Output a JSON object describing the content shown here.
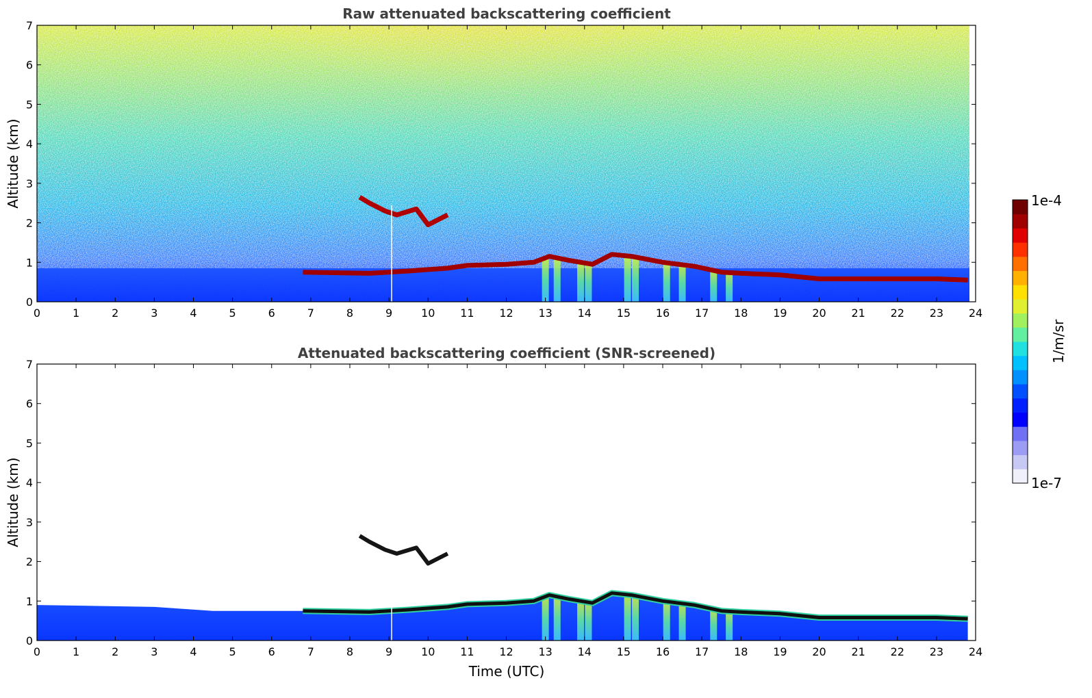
{
  "chart_data": [
    {
      "type": "heatmap",
      "title": "Raw attenuated backscattering coefficient",
      "xlabel": "",
      "ylabel": "Altitude (km)",
      "xlim": [
        0,
        24
      ],
      "ylim": [
        0,
        7
      ],
      "x_ticks": [
        "0",
        "1",
        "2",
        "3",
        "4",
        "5",
        "6",
        "7",
        "8",
        "9",
        "10",
        "11",
        "12",
        "13",
        "14",
        "15",
        "16",
        "17",
        "18",
        "19",
        "20",
        "21",
        "22",
        "23",
        "24"
      ],
      "y_ticks": [
        "0",
        "1",
        "2",
        "3",
        "4",
        "5",
        "6",
        "7"
      ],
      "layers": {
        "boundary_layer": [
          [
            6.8,
            0.75
          ],
          [
            8.5,
            0.72
          ],
          [
            9.5,
            0.78
          ],
          [
            10.5,
            0.85
          ],
          [
            11,
            0.92
          ],
          [
            12,
            0.95
          ],
          [
            12.7,
            1.0
          ],
          [
            13.1,
            1.15
          ],
          [
            13.6,
            1.05
          ],
          [
            14.2,
            0.95
          ],
          [
            14.7,
            1.2
          ],
          [
            15.2,
            1.15
          ],
          [
            16,
            1.0
          ],
          [
            16.8,
            0.9
          ],
          [
            17.5,
            0.75
          ],
          [
            18,
            0.72
          ],
          [
            19,
            0.68
          ],
          [
            20,
            0.58
          ],
          [
            21,
            0.58
          ],
          [
            22,
            0.58
          ],
          [
            23,
            0.58
          ],
          [
            23.8,
            0.55
          ]
        ],
        "elevated_cloud": [
          [
            8.25,
            2.65
          ],
          [
            8.5,
            2.5
          ],
          [
            8.9,
            2.3
          ],
          [
            9.2,
            2.2
          ],
          [
            9.7,
            2.35
          ],
          [
            10.0,
            1.95
          ],
          [
            10.5,
            2.2
          ]
        ],
        "precip_columns": [
          13.0,
          13.3,
          13.9,
          14.1,
          15.1,
          15.3,
          16.1,
          16.5,
          17.3,
          17.7
        ]
      }
    },
    {
      "type": "heatmap",
      "title": "Attenuated backscattering coefficient (SNR-screened)",
      "xlabel": "Time (UTC)",
      "ylabel": "Altitude (km)",
      "xlim": [
        0,
        24
      ],
      "ylim": [
        0,
        7
      ],
      "x_ticks": [
        "0",
        "1",
        "2",
        "3",
        "4",
        "5",
        "6",
        "7",
        "8",
        "9",
        "10",
        "11",
        "12",
        "13",
        "14",
        "15",
        "16",
        "17",
        "18",
        "19",
        "20",
        "21",
        "22",
        "23",
        "24"
      ],
      "y_ticks": [
        "0",
        "1",
        "2",
        "3",
        "4",
        "5",
        "6",
        "7"
      ],
      "layers": {
        "boundary_layer": [
          [
            0,
            0.9
          ],
          [
            3,
            0.85
          ],
          [
            4.5,
            0.75
          ],
          [
            6.8,
            0.75
          ],
          [
            8.5,
            0.72
          ],
          [
            9.5,
            0.78
          ],
          [
            10.5,
            0.85
          ],
          [
            11,
            0.92
          ],
          [
            12,
            0.95
          ],
          [
            12.7,
            1.0
          ],
          [
            13.1,
            1.15
          ],
          [
            13.6,
            1.05
          ],
          [
            14.2,
            0.95
          ],
          [
            14.7,
            1.2
          ],
          [
            15.2,
            1.15
          ],
          [
            16,
            1.0
          ],
          [
            16.8,
            0.9
          ],
          [
            17.5,
            0.75
          ],
          [
            18,
            0.72
          ],
          [
            19,
            0.68
          ],
          [
            20,
            0.58
          ],
          [
            21,
            0.58
          ],
          [
            22,
            0.58
          ],
          [
            23,
            0.58
          ],
          [
            23.8,
            0.55
          ]
        ]
      }
    }
  ],
  "colorbar": {
    "label": "1/m/sr",
    "max_label": "1e-4",
    "min_label": "1e-7",
    "colors": [
      "#f0f0fa",
      "#c8c8f5",
      "#9c9cf5",
      "#7070f5",
      "#0000ff",
      "#0020ff",
      "#0050ff",
      "#0090ff",
      "#00c0ff",
      "#20e0e0",
      "#60f0a0",
      "#a0f060",
      "#e0f030",
      "#ffe000",
      "#ffb000",
      "#ff7000",
      "#ff3000",
      "#e00000",
      "#a00000",
      "#700000"
    ]
  }
}
